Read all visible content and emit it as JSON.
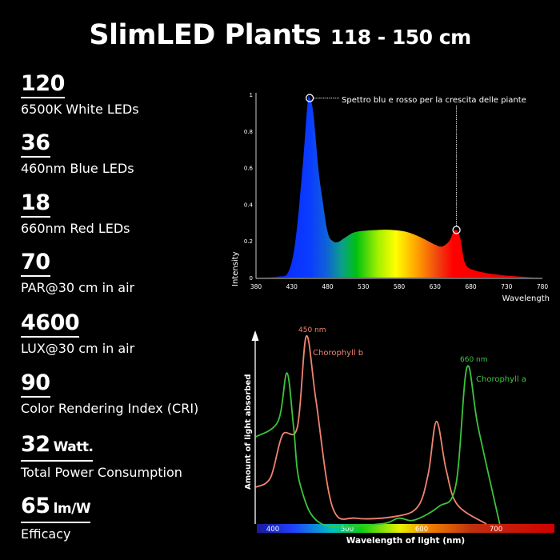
{
  "title": {
    "main": "SlimLED Plants",
    "size": "118 - 150 cm"
  },
  "stats": [
    {
      "value": "120",
      "unit": "",
      "label": "6500K White LEDs"
    },
    {
      "value": "36",
      "unit": "",
      "label": "460nm Blue LEDs"
    },
    {
      "value": "18",
      "unit": "",
      "label": "660nm Red LEDs"
    },
    {
      "value": "70",
      "unit": "",
      "label": "PAR@30 cm in air"
    },
    {
      "value": "4600",
      "unit": "",
      "label": "LUX@30 cm in air"
    },
    {
      "value": "90",
      "unit": "",
      "label": "Color Rendering Index (CRI)"
    },
    {
      "value": "32",
      "unit": "Watt.",
      "label": "Total Power Consumption"
    },
    {
      "value": "65",
      "unit": "lm/W",
      "label": "Efficacy"
    }
  ],
  "chart_data": [
    {
      "type": "area",
      "title": "",
      "xlabel": "Wavelength",
      "ylabel": "Intensity",
      "xlim": [
        380,
        780
      ],
      "ylim": [
        0,
        1
      ],
      "xticks": [
        "380",
        "430",
        "480",
        "530",
        "580",
        "630",
        "680",
        "730",
        "780"
      ],
      "yticks": [
        "0",
        "0.2",
        "0.4",
        "0.6",
        "0.8",
        "1"
      ],
      "annotation": "Spettro blu e rosso per la crescita delle piante",
      "highlight_points": [
        [
          455,
          0.98
        ],
        [
          660,
          0.26
        ]
      ],
      "x": [
        380,
        410,
        425,
        435,
        445,
        452,
        455,
        460,
        467,
        472,
        480,
        487,
        495,
        505,
        520,
        550,
        570,
        590,
        610,
        630,
        640,
        650,
        658,
        665,
        672,
        685,
        720,
        760,
        780
      ],
      "y": [
        0,
        0.005,
        0.03,
        0.2,
        0.6,
        0.95,
        0.98,
        0.9,
        0.6,
        0.45,
        0.25,
        0.2,
        0.195,
        0.22,
        0.25,
        0.26,
        0.26,
        0.25,
        0.22,
        0.18,
        0.17,
        0.2,
        0.26,
        0.22,
        0.08,
        0.04,
        0.015,
        0.003,
        0
      ]
    },
    {
      "type": "line",
      "xlabel": "Wavelength of light (nm)",
      "ylabel": "Amount of light absorbed",
      "xlim": [
        378,
        780
      ],
      "ylim": [
        0,
        1
      ],
      "xticks": [
        "400",
        "500",
        "600",
        "700"
      ],
      "series": [
        {
          "name": "Chorophyll b",
          "peak_label": "450 nm",
          "color": "#f08470",
          "x": [
            377,
            397,
            413,
            433,
            445,
            458,
            480,
            512,
            566,
            595,
            609,
            620,
            633,
            648,
            687
          ],
          "y": [
            0.19,
            0.24,
            0.46,
            0.5,
            0.97,
            0.64,
            0.09,
            0.03,
            0.04,
            0.09,
            0.26,
            0.53,
            0.28,
            0.1,
            0
          ]
        },
        {
          "name": "Chorophyll a",
          "peak_label": "660 nm",
          "color": "#3cc43c",
          "x": [
            377,
            407,
            419,
            428,
            437,
            466,
            544,
            569,
            590,
            623,
            646,
            661,
            676,
            705
          ],
          "y": [
            0.45,
            0.53,
            0.78,
            0.5,
            0.2,
            0,
            0,
            0.03,
            0.02,
            0.09,
            0.2,
            0.81,
            0.5,
            0
          ]
        }
      ]
    }
  ]
}
